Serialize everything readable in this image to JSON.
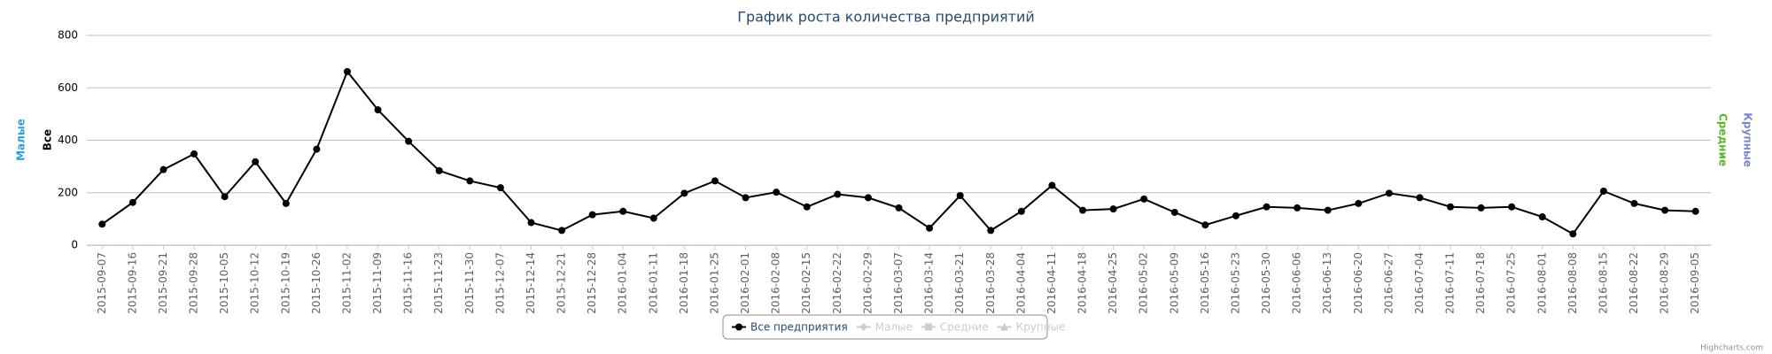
{
  "chart_data": {
    "type": "line",
    "title": "График роста количества предприятий",
    "categories": [
      "2015-09-07",
      "2015-09-16",
      "2015-09-21",
      "2015-09-28",
      "2015-10-05",
      "2015-10-12",
      "2015-10-19",
      "2015-10-26",
      "2015-11-02",
      "2015-11-09",
      "2015-11-16",
      "2015-11-23",
      "2015-11-30",
      "2015-12-07",
      "2015-12-14",
      "2015-12-21",
      "2015-12-28",
      "2016-01-04",
      "2016-01-11",
      "2016-01-18",
      "2016-01-25",
      "2016-02-01",
      "2016-02-08",
      "2016-02-15",
      "2016-02-22",
      "2016-02-29",
      "2016-03-07",
      "2016-03-14",
      "2016-03-21",
      "2016-03-28",
      "2016-04-04",
      "2016-04-11",
      "2016-04-18",
      "2016-04-25",
      "2016-05-02",
      "2016-05-09",
      "2016-05-16",
      "2016-05-23",
      "2016-05-30",
      "2016-06-06",
      "2016-06-13",
      "2016-06-20",
      "2016-06-27",
      "2016-07-04",
      "2016-07-11",
      "2016-07-18",
      "2016-07-25",
      "2016-08-01",
      "2016-08-08",
      "2016-08-15",
      "2016-08-22",
      "2016-08-29",
      "2016-09-05"
    ],
    "series": [
      {
        "name": "Все предприятия",
        "color": "#000000",
        "marker": "circle",
        "visible": true,
        "values": [
          80,
          163,
          288,
          348,
          185,
          318,
          159,
          366,
          662,
          516,
          396,
          284,
          245,
          219,
          86,
          56,
          116,
          129,
          103,
          198,
          245,
          181,
          202,
          146,
          194,
          181,
          142,
          65,
          189,
          56,
          129,
          228,
          133,
          138,
          176,
          125,
          77,
          112,
          146,
          142,
          133,
          159,
          198,
          181,
          146,
          142,
          146,
          108,
          43,
          206,
          159,
          133,
          129
        ]
      },
      {
        "name": "Малые",
        "color": "#2b9fd9",
        "marker": "diamond",
        "visible": false
      },
      {
        "name": "Средние",
        "color": "#5ab52a",
        "marker": "square",
        "visible": false
      },
      {
        "name": "Крупные",
        "color": "#8085c9",
        "marker": "triangle",
        "visible": false
      }
    ],
    "y_axis_titles": [
      {
        "text": "Малые",
        "color": "#2b9fd9",
        "side": "left"
      },
      {
        "text": "Все",
        "color": "#000000",
        "side": "left"
      },
      {
        "text": "Средние",
        "color": "#5ab52a",
        "side": "right"
      },
      {
        "text": "Крупные",
        "color": "#8085c9",
        "side": "right"
      }
    ],
    "ylim": [
      0,
      800
    ],
    "yticks": [
      0,
      200,
      400,
      600,
      800
    ],
    "grid": true,
    "legend_position": "bottom",
    "credits": "Highcharts.com"
  }
}
